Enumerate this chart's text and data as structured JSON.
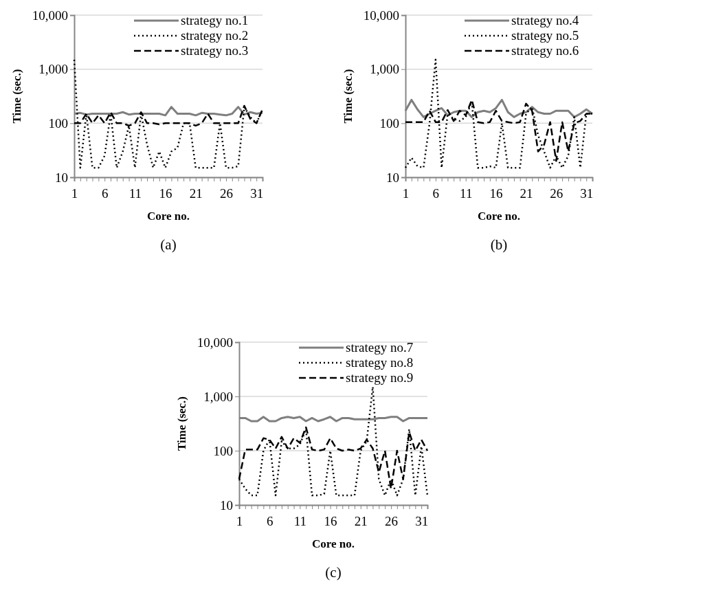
{
  "chart_data": [
    {
      "type": "line",
      "xlabel": "Core no.",
      "ylabel": "Time (sec.)",
      "annotations": [
        "(a)"
      ],
      "log": true,
      "grid": "y",
      "legend": "top right",
      "marker": "none",
      "xlim": [
        1,
        32
      ],
      "ylim": [
        10,
        10000
      ],
      "yticks": [
        {
          "value": 10,
          "label": "10"
        },
        {
          "value": 100,
          "label": "100"
        },
        {
          "value": 1000,
          "label": "1,000"
        },
        {
          "value": 10000,
          "label": "10,000"
        }
      ],
      "xticks": [
        1,
        {
          "value": 2,
          "label": null
        },
        {
          "value": 3,
          "label": null
        },
        {
          "value": 4,
          "label": null
        },
        {
          "value": 5,
          "label": null
        },
        6,
        {
          "value": 7,
          "label": null
        },
        {
          "value": 8,
          "label": null
        },
        {
          "value": 9,
          "label": null
        },
        {
          "value": 10,
          "label": null
        },
        11,
        {
          "value": 12,
          "label": null
        },
        {
          "value": 13,
          "label": null
        },
        {
          "value": 14,
          "label": null
        },
        {
          "value": 15,
          "label": null
        },
        16,
        {
          "value": 17,
          "label": null
        },
        {
          "value": 18,
          "label": null
        },
        {
          "value": 19,
          "label": null
        },
        {
          "value": 20,
          "label": null
        },
        21,
        {
          "value": 22,
          "label": null
        },
        {
          "value": 23,
          "label": null
        },
        {
          "value": 24,
          "label": null
        },
        {
          "value": 25,
          "label": null
        },
        26,
        {
          "value": 27,
          "label": null
        },
        {
          "value": 28,
          "label": null
        },
        {
          "value": 29,
          "label": null
        },
        {
          "value": 30,
          "label": null
        },
        31,
        {
          "value": 32,
          "label": null
        }
      ],
      "x": [
        1,
        2,
        3,
        4,
        5,
        6,
        7,
        8,
        9,
        10,
        11,
        12,
        13,
        14,
        15,
        16,
        17,
        18,
        19,
        20,
        21,
        22,
        23,
        24,
        25,
        26,
        27,
        28,
        29,
        30,
        31,
        32
      ],
      "series": [
        {
          "name": "strategy no.1",
          "color": "#7f7f7f",
          "line_style": "solid",
          "values": [
            150,
            155,
            145,
            150,
            150,
            150,
            150,
            150,
            160,
            145,
            150,
            150,
            150,
            150,
            150,
            140,
            200,
            150,
            150,
            150,
            140,
            155,
            150,
            150,
            145,
            140,
            150,
            200,
            145,
            160,
            150,
            155
          ]
        },
        {
          "name": "strategy no.2",
          "color": "#000000",
          "line_style": "dotted",
          "values": [
            1500,
            15,
            150,
            15,
            15,
            25,
            150,
            15,
            30,
            90,
            15,
            150,
            40,
            15,
            30,
            15,
            30,
            35,
            100,
            100,
            15,
            15,
            15,
            15,
            100,
            15,
            15,
            16,
            200,
            130,
            100,
            180
          ]
        },
        {
          "name": "strategy no.3",
          "color": "#000000",
          "line_style": "dashed",
          "values": [
            100,
            100,
            150,
            100,
            140,
            100,
            160,
            100,
            100,
            90,
            100,
            160,
            100,
            100,
            95,
            100,
            100,
            100,
            100,
            100,
            90,
            100,
            150,
            100,
            100,
            100,
            100,
            100,
            210,
            120,
            100,
            180
          ]
        }
      ]
    },
    {
      "type": "line",
      "xlabel": "Core no.",
      "ylabel": "Time (sec.)",
      "annotations": [
        "(b)"
      ],
      "log": true,
      "grid": "y",
      "legend": "top right",
      "marker": "none",
      "xlim": [
        1,
        32
      ],
      "ylim": [
        10,
        10000
      ],
      "yticks": [
        {
          "value": 10,
          "label": "10"
        },
        {
          "value": 100,
          "label": "100"
        },
        {
          "value": 1000,
          "label": "1,000"
        },
        {
          "value": 10000,
          "label": "10,000"
        }
      ],
      "xticks": [
        1,
        {
          "value": 2,
          "label": null
        },
        {
          "value": 3,
          "label": null
        },
        {
          "value": 4,
          "label": null
        },
        {
          "value": 5,
          "label": null
        },
        6,
        {
          "value": 7,
          "label": null
        },
        {
          "value": 8,
          "label": null
        },
        {
          "value": 9,
          "label": null
        },
        {
          "value": 10,
          "label": null
        },
        11,
        {
          "value": 12,
          "label": null
        },
        {
          "value": 13,
          "label": null
        },
        {
          "value": 14,
          "label": null
        },
        {
          "value": 15,
          "label": null
        },
        16,
        {
          "value": 17,
          "label": null
        },
        {
          "value": 18,
          "label": null
        },
        {
          "value": 19,
          "label": null
        },
        {
          "value": 20,
          "label": null
        },
        21,
        {
          "value": 22,
          "label": null
        },
        {
          "value": 23,
          "label": null
        },
        {
          "value": 24,
          "label": null
        },
        {
          "value": 25,
          "label": null
        },
        26,
        {
          "value": 27,
          "label": null
        },
        {
          "value": 28,
          "label": null
        },
        {
          "value": 29,
          "label": null
        },
        {
          "value": 30,
          "label": null
        },
        31,
        {
          "value": 32,
          "label": null
        }
      ],
      "x": [
        1,
        2,
        3,
        4,
        5,
        6,
        7,
        8,
        9,
        10,
        11,
        12,
        13,
        14,
        15,
        16,
        17,
        18,
        19,
        20,
        21,
        22,
        23,
        24,
        25,
        26,
        27,
        28,
        29,
        30,
        31,
        32
      ],
      "series": [
        {
          "name": "strategy no.4",
          "color": "#7f7f7f",
          "line_style": "solid",
          "values": [
            170,
            270,
            180,
            130,
            150,
            170,
            190,
            140,
            160,
            170,
            170,
            130,
            160,
            170,
            160,
            190,
            270,
            160,
            130,
            150,
            160,
            200,
            160,
            150,
            150,
            170,
            170,
            170,
            130,
            150,
            180,
            150
          ]
        },
        {
          "name": "strategy no.5",
          "color": "#000000",
          "line_style": "dotted",
          "values": [
            15,
            23,
            16,
            15,
            100,
            1500,
            15,
            150,
            120,
            110,
            130,
            250,
            15,
            15,
            16,
            15,
            100,
            15,
            15,
            15,
            150,
            200,
            60,
            30,
            15,
            25,
            15,
            25,
            130,
            15,
            150,
            150
          ]
        },
        {
          "name": "strategy no.6",
          "color": "#000000",
          "line_style": "dashed",
          "values": [
            105,
            105,
            105,
            105,
            170,
            105,
            105,
            175,
            110,
            170,
            140,
            270,
            105,
            100,
            105,
            170,
            110,
            105,
            100,
            105,
            230,
            170,
            30,
            40,
            105,
            20,
            105,
            30,
            100,
            110,
            150,
            150
          ]
        }
      ]
    },
    {
      "type": "line",
      "xlabel": "Core no.",
      "ylabel": "Time (sec.)",
      "annotations": [
        "(c)"
      ],
      "log": true,
      "grid": "y",
      "legend": "top right",
      "marker": "none",
      "xlim": [
        1,
        32
      ],
      "ylim": [
        10,
        10000
      ],
      "yticks": [
        {
          "value": 10,
          "label": "10"
        },
        {
          "value": 100,
          "label": "100"
        },
        {
          "value": 1000,
          "label": "1,000"
        },
        {
          "value": 10000,
          "label": "10,000"
        }
      ],
      "xticks": [
        1,
        {
          "value": 2,
          "label": null
        },
        {
          "value": 3,
          "label": null
        },
        {
          "value": 4,
          "label": null
        },
        {
          "value": 5,
          "label": null
        },
        6,
        {
          "value": 7,
          "label": null
        },
        {
          "value": 8,
          "label": null
        },
        {
          "value": 9,
          "label": null
        },
        {
          "value": 10,
          "label": null
        },
        11,
        {
          "value": 12,
          "label": null
        },
        {
          "value": 13,
          "label": null
        },
        {
          "value": 14,
          "label": null
        },
        {
          "value": 15,
          "label": null
        },
        16,
        {
          "value": 17,
          "label": null
        },
        {
          "value": 18,
          "label": null
        },
        {
          "value": 19,
          "label": null
        },
        {
          "value": 20,
          "label": null
        },
        21,
        {
          "value": 22,
          "label": null
        },
        {
          "value": 23,
          "label": null
        },
        {
          "value": 24,
          "label": null
        },
        {
          "value": 25,
          "label": null
        },
        26,
        {
          "value": 27,
          "label": null
        },
        {
          "value": 28,
          "label": null
        },
        {
          "value": 29,
          "label": null
        },
        {
          "value": 30,
          "label": null
        },
        31,
        {
          "value": 32,
          "label": null
        }
      ],
      "x": [
        1,
        2,
        3,
        4,
        5,
        6,
        7,
        8,
        9,
        10,
        11,
        12,
        13,
        14,
        15,
        16,
        17,
        18,
        19,
        20,
        21,
        22,
        23,
        24,
        25,
        26,
        27,
        28,
        29,
        30,
        31,
        32
      ],
      "series": [
        {
          "name": "strategy no.7",
          "color": "#7f7f7f",
          "line_style": "solid",
          "values": [
            400,
            400,
            350,
            350,
            420,
            350,
            350,
            400,
            420,
            400,
            420,
            350,
            400,
            350,
            380,
            420,
            350,
            400,
            400,
            380,
            380,
            380,
            380,
            400,
            400,
            420,
            420,
            350,
            400,
            400,
            400,
            400
          ]
        },
        {
          "name": "strategy no.8",
          "color": "#000000",
          "line_style": "dotted",
          "values": [
            30,
            20,
            15,
            15,
            100,
            160,
            15,
            150,
            110,
            110,
            130,
            250,
            15,
            15,
            16,
            100,
            15,
            15,
            15,
            15,
            100,
            150,
            1500,
            30,
            15,
            30,
            15,
            30,
            250,
            15,
            120,
            15
          ]
        },
        {
          "name": "strategy no.9",
          "color": "#000000",
          "line_style": "dashed",
          "values": [
            30,
            105,
            105,
            105,
            170,
            160,
            110,
            180,
            110,
            170,
            140,
            270,
            105,
            100,
            105,
            170,
            110,
            100,
            105,
            100,
            110,
            160,
            110,
            40,
            100,
            20,
            100,
            30,
            220,
            100,
            160,
            100
          ]
        }
      ]
    }
  ]
}
